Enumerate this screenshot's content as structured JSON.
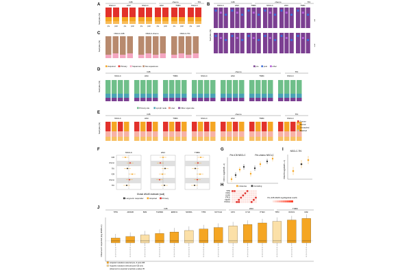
{
  "panels": {
    "A": {
      "letter": "A",
      "groups": [
        "ICB",
        "chemo",
        "TKI"
      ],
      "cols": [
        "NSCLC",
        "HNC",
        "NSCLC",
        "HNC",
        "TNBC",
        "NSCLC"
      ],
      "ylabel": "Samples (%)",
      "xlabels": [
        "pre",
        "post",
        "pre",
        "post",
        "pre",
        "post",
        "pre",
        "post",
        "pre",
        "post",
        "pre",
        "post"
      ]
    },
    "B": {
      "letter": "B",
      "groups": [
        "ICB",
        "chemo",
        "TKI"
      ],
      "cols": [
        "NSCLC",
        "HNC",
        "TNBC",
        "NSCLC",
        "HNC",
        "TNBC"
      ],
      "ylabel": "Samples (%)",
      "side1": "pre",
      "side2": "post"
    },
    "C": {
      "letter": "C",
      "cols": [
        "NSCLC-ICB",
        "NSCLC-chemo",
        "NSCLC-TKI"
      ],
      "ylabel": "Samples (%)"
    },
    "D": {
      "letter": "D",
      "groups": [
        "ICB",
        "chemo",
        "TKI"
      ],
      "cols": [
        "NSCLC",
        "HNC",
        "TNBC",
        "NSCLC",
        "HNC",
        "TNBC",
        "NSCLC"
      ],
      "ylabel": "Samples (%)"
    },
    "E": {
      "letter": "E",
      "groups": [
        "ICB",
        "chemo",
        "TKI"
      ],
      "cols": [
        "NSCLC",
        "HNC",
        "TNBC",
        "NSCLC",
        "HNC",
        "TNBC",
        "NSCLC"
      ],
      "ylabel": "Samples (%)"
    },
    "F": {
      "letter": "F",
      "cols": [
        "NSCLC",
        "HNC",
        "TNBC"
      ],
      "rows": [
        "ICB",
        "chemo",
        "TKI",
        "ICB",
        "chemo",
        "TKI"
      ],
      "xlabel": "Global dN/dS estimate (wall)"
    },
    "G": {
      "letter": "G",
      "titles": [
        "Pre-ICB NSCLC",
        "Pre-chemo NSCLC"
      ],
      "ylabel": "CFN-1 log(dN/dS +1)"
    },
    "H": {
      "letter": "H",
      "ylabel": "Pre-ICB dN/dS log10(global cutoff)",
      "genes": [
        "TP53",
        "KRAS",
        "EGFR",
        "STK11",
        "KEAP1",
        "PIK3CA"
      ]
    },
    "I": {
      "letter": "I",
      "title": "NSCLC-TKI",
      "ylabel": "PRESS log(dN/dS +1)"
    },
    "J": {
      "letter": "J",
      "groups": [
        "ICB",
        "HNC",
        "TNBC"
      ],
      "genes": [
        "TP53",
        "ARID1B",
        "B2M",
        "TGFBR2",
        "ERRFI1",
        "NFKBIA",
        "TP53",
        "NOTCH1",
        "FAT1",
        "CYLD",
        "PTEN",
        "TP53",
        "RUNX1",
        "MAF"
      ],
      "ylabel": "Observed / expected (log dN/dS+1)"
    }
  },
  "legends": {
    "A": [
      "Acquired",
      "Primary",
      "Squamous",
      "Non-squamous"
    ],
    "B": [
      "pre",
      "post",
      "other"
    ],
    "D": [
      "Primary site",
      "Lymph node",
      "Liver",
      "Other organ site"
    ],
    "E": [
      "Tumour",
      "Normal",
      "Unmatched",
      "Matched"
    ],
    "F": [
      "Long-term responder",
      "Acquired",
      "Primary"
    ],
    "G": [
      "missense",
      "truncating"
    ],
    "J": [
      "Acquired mutations selected pre- & post-ICB",
      "Acquired mutations selected post-ICB only",
      "(observed vs expected empirical p-value) 05"
    ]
  },
  "colors": {
    "orange": "#f5a623",
    "red": "#e2312b",
    "pink": "#f4a6c0",
    "tan": "#b88a6e",
    "purple": "#7b3f91",
    "blue": "#3b6bd6",
    "violet": "#b25bd6",
    "green": "#6fbf8a",
    "teal": "#4aa3b5",
    "salmon": "#f08c72",
    "lightred": "#f7b2a6",
    "grey": "#bdbdbd"
  }
}
